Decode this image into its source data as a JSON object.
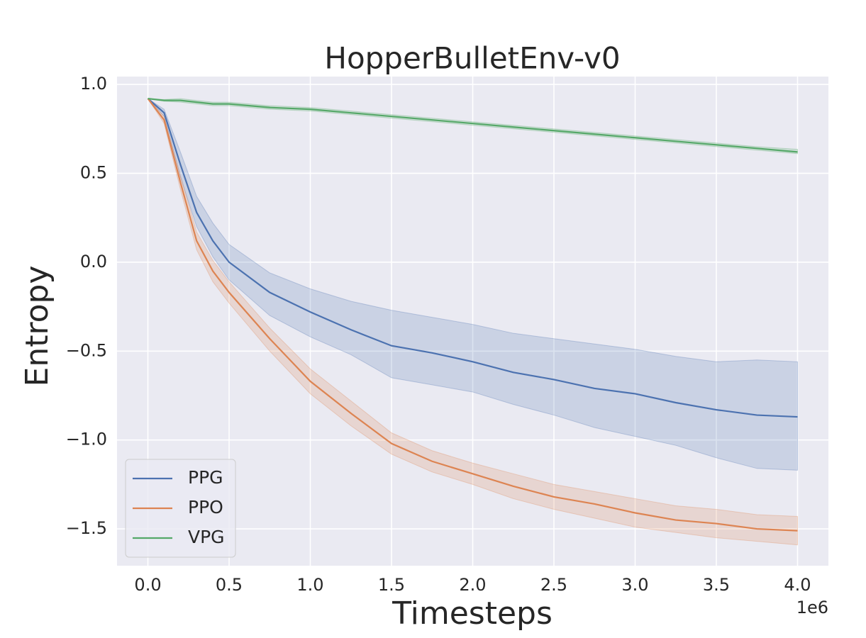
{
  "chart_data": {
    "type": "line",
    "title": "HopperBulletEnv-v0",
    "x_label": "Timesteps",
    "y_label": "Entropy",
    "x_offset_label": "1e6",
    "x": [
      0,
      0.1,
      0.2,
      0.3,
      0.4,
      0.5,
      0.75,
      1.0,
      1.25,
      1.5,
      1.75,
      2.0,
      2.25,
      2.5,
      2.75,
      3.0,
      3.25,
      3.5,
      3.75,
      4.0
    ],
    "series": [
      {
        "name": "PPG",
        "color": "#4c72b0",
        "values": [
          0.92,
          0.84,
          0.55,
          0.28,
          0.12,
          0.0,
          -0.17,
          -0.28,
          -0.38,
          -0.47,
          -0.51,
          -0.56,
          -0.62,
          -0.66,
          -0.71,
          -0.74,
          -0.79,
          -0.83,
          -0.86,
          -0.87
        ],
        "lower": [
          0.92,
          0.82,
          0.48,
          0.2,
          0.03,
          -0.1,
          -0.3,
          -0.42,
          -0.52,
          -0.65,
          -0.69,
          -0.73,
          -0.8,
          -0.86,
          -0.93,
          -0.98,
          -1.03,
          -1.1,
          -1.16,
          -1.17
        ],
        "upper": [
          0.92,
          0.86,
          0.62,
          0.37,
          0.22,
          0.1,
          -0.06,
          -0.15,
          -0.22,
          -0.27,
          -0.31,
          -0.35,
          -0.4,
          -0.43,
          -0.46,
          -0.49,
          -0.53,
          -0.56,
          -0.55,
          -0.56
        ]
      },
      {
        "name": "PPO",
        "color": "#dd8452",
        "values": [
          0.92,
          0.8,
          0.45,
          0.12,
          -0.05,
          -0.17,
          -0.43,
          -0.67,
          -0.85,
          -1.02,
          -1.12,
          -1.19,
          -1.26,
          -1.32,
          -1.36,
          -1.41,
          -1.45,
          -1.47,
          -1.5,
          -1.51
        ],
        "lower": [
          0.92,
          0.78,
          0.41,
          0.07,
          -0.11,
          -0.23,
          -0.5,
          -0.74,
          -0.92,
          -1.08,
          -1.18,
          -1.25,
          -1.33,
          -1.39,
          -1.44,
          -1.49,
          -1.52,
          -1.55,
          -1.57,
          -1.59
        ],
        "upper": [
          0.92,
          0.82,
          0.49,
          0.17,
          0.01,
          -0.11,
          -0.37,
          -0.6,
          -0.78,
          -0.96,
          -1.06,
          -1.13,
          -1.19,
          -1.25,
          -1.29,
          -1.33,
          -1.37,
          -1.39,
          -1.42,
          -1.43
        ]
      },
      {
        "name": "VPG",
        "color": "#55a868",
        "values": [
          0.92,
          0.91,
          0.91,
          0.9,
          0.89,
          0.89,
          0.87,
          0.86,
          0.84,
          0.82,
          0.8,
          0.78,
          0.76,
          0.74,
          0.72,
          0.7,
          0.68,
          0.66,
          0.64,
          0.62
        ],
        "lower": [
          0.92,
          0.905,
          0.9,
          0.89,
          0.88,
          0.88,
          0.86,
          0.85,
          0.83,
          0.81,
          0.79,
          0.77,
          0.75,
          0.73,
          0.71,
          0.69,
          0.67,
          0.65,
          0.63,
          0.61
        ],
        "upper": [
          0.92,
          0.915,
          0.92,
          0.91,
          0.9,
          0.9,
          0.88,
          0.87,
          0.85,
          0.83,
          0.81,
          0.79,
          0.77,
          0.75,
          0.73,
          0.71,
          0.69,
          0.67,
          0.65,
          0.635
        ]
      }
    ],
    "xlim": [
      -0.19,
      4.19
    ],
    "ylim": [
      -1.707,
      1.044
    ],
    "xticks": [
      {
        "value": 0,
        "label": "0.0"
      },
      {
        "value": 0.5,
        "label": "0.5"
      },
      {
        "value": 1,
        "label": "1.0"
      },
      {
        "value": 1.5,
        "label": "1.5"
      },
      {
        "value": 2,
        "label": "2.0"
      },
      {
        "value": 2.5,
        "label": "2.5"
      },
      {
        "value": 3,
        "label": "3.0"
      },
      {
        "value": 3.5,
        "label": "3.5"
      },
      {
        "value": 4,
        "label": "4.0"
      }
    ],
    "yticks": [
      {
        "value": -1.5,
        "label": "−1.5"
      },
      {
        "value": -1,
        "label": "−1.0"
      },
      {
        "value": -0.5,
        "label": "−0.5"
      },
      {
        "value": 0,
        "label": "0.0"
      },
      {
        "value": 0.5,
        "label": "0.5"
      },
      {
        "value": 1,
        "label": "1.0"
      }
    ],
    "grid": true,
    "legend_position": "lower-left"
  }
}
